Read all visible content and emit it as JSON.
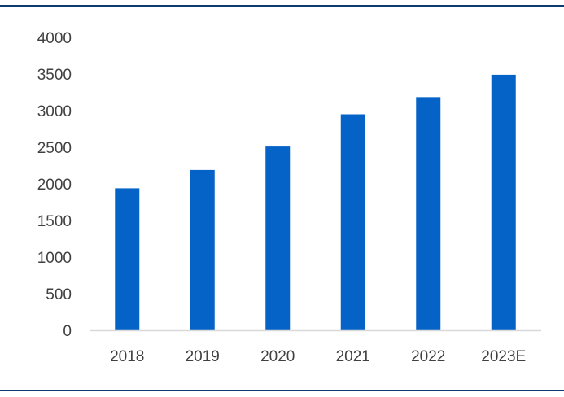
{
  "chart_data": {
    "type": "bar",
    "categories": [
      "2018",
      "2019",
      "2020",
      "2021",
      "2022",
      "2023E"
    ],
    "values": [
      1940,
      2190,
      2510,
      2950,
      3185,
      3490
    ],
    "title": "",
    "xlabel": "",
    "ylabel": "",
    "ylim": [
      0,
      4000
    ],
    "yticks": [
      "0",
      "500",
      "1000",
      "1500",
      "2000",
      "2500",
      "3000",
      "3500",
      "4000"
    ],
    "grid": false,
    "legend": "none",
    "bar_color": "#0562C7",
    "axis_color": "#D9D9D9",
    "text_color": "#404040",
    "rule_color": "#0E3A72"
  }
}
